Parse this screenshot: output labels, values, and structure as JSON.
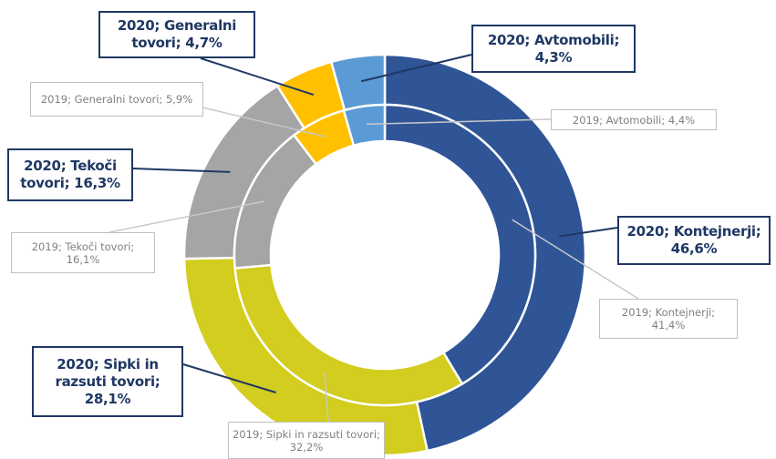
{
  "chart_data": {
    "type": "donut",
    "series": [
      {
        "colors": [
          "#2f5597",
          "#d2cd1e",
          "#a5a5a5",
          "#ffc000",
          "#5b9bd5"
        ],
        "values": [
          46.6,
          28.1,
          16.3,
          4.7,
          4.3
        ],
        "value_labels": [
          "2020; Kontejnerji; 46,6%",
          "2020; Sipki in razsuti tovori; 28,1%",
          "2020; Tekoči tovori; 16,3%",
          "2020; Generalni tovori; 4,7%",
          "2020; Avtomobili; 4,3%"
        ]
      },
      {
        "colors": [
          "#2f5597",
          "#d2cd1e",
          "#a5a5a5",
          "#ffc000",
          "#5b9bd5"
        ],
        "values": [
          41.4,
          32.2,
          16.1,
          5.9,
          4.4
        ],
        "value_labels": [
          "2019; Kontejnerji; 41,4%",
          "2019; Sipki in razsuti tovori; 32,2%",
          "2019; Tekoči tovori; 16,1%",
          "2019; Generalni tovori; 5,9%",
          "2019; Avtomobili; 4,4%"
        ]
      }
    ]
  }
}
